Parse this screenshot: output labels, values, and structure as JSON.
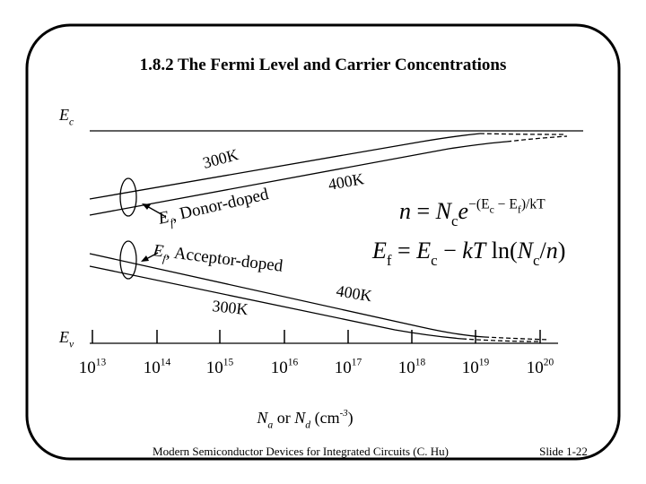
{
  "title": "1.8.2  The Fermi Level and Carrier Concentrations",
  "diagram": {
    "ec_label": [
      {
        "text": "E",
        "kind": "i"
      },
      {
        "text": "c",
        "kind": "sub"
      }
    ],
    "ev_label": [
      {
        "text": "E",
        "kind": "i"
      },
      {
        "text": "v",
        "kind": "sub"
      }
    ],
    "donor_300k": [
      {
        "text": "300K",
        "kind": "n"
      }
    ],
    "donor_400k": [
      {
        "text": "400K",
        "kind": "n"
      }
    ],
    "donor_label": [
      {
        "text": "E",
        "kind": "i"
      },
      {
        "text": "f",
        "kind": "sub"
      },
      {
        "text": ", Donor-doped",
        "kind": "n"
      }
    ],
    "acceptor_label": [
      {
        "text": "E",
        "kind": "i"
      },
      {
        "text": "f",
        "kind": "sub"
      },
      {
        "text": ", Acceptor-doped",
        "kind": "n"
      }
    ],
    "acceptor_400k": [
      {
        "text": "400K",
        "kind": "n"
      }
    ],
    "acceptor_300k": [
      {
        "text": "300K",
        "kind": "n"
      }
    ],
    "x_ticks": [
      [
        {
          "text": "10",
          "kind": "n"
        },
        {
          "text": "13",
          "kind": "sup"
        }
      ],
      [
        {
          "text": "10",
          "kind": "n"
        },
        {
          "text": "14",
          "kind": "sup"
        }
      ],
      [
        {
          "text": "10",
          "kind": "n"
        },
        {
          "text": "15",
          "kind": "sup"
        }
      ],
      [
        {
          "text": "10",
          "kind": "n"
        },
        {
          "text": "16",
          "kind": "sup"
        }
      ],
      [
        {
          "text": "10",
          "kind": "n"
        },
        {
          "text": "17",
          "kind": "sup"
        }
      ],
      [
        {
          "text": "10",
          "kind": "n"
        },
        {
          "text": "18",
          "kind": "sup"
        }
      ],
      [
        {
          "text": "10",
          "kind": "n"
        },
        {
          "text": "19",
          "kind": "sup"
        }
      ],
      [
        {
          "text": "10",
          "kind": "n"
        },
        {
          "text": "20",
          "kind": "sup"
        }
      ]
    ],
    "x_axis_label": [
      {
        "text": "N",
        "kind": "i"
      },
      {
        "text": "a",
        "kind": "sub"
      },
      {
        "text": " or ",
        "kind": "n"
      },
      {
        "text": "N",
        "kind": "i"
      },
      {
        "text": "d",
        "kind": "sub"
      },
      {
        "text": " (cm",
        "kind": "n"
      },
      {
        "text": "-3",
        "kind": "sup"
      },
      {
        "text": ")",
        "kind": "n"
      }
    ],
    "equation_n": [
      {
        "text": "n",
        "kind": "i"
      },
      {
        "text": " = ",
        "kind": "n"
      },
      {
        "text": "N",
        "kind": "i"
      },
      {
        "text": "c",
        "kind": "sub"
      },
      {
        "text": "e",
        "kind": "i"
      },
      {
        "text": "−(",
        "kind": "sup"
      },
      {
        "text": "E",
        "kind": "sup"
      },
      {
        "text": "c",
        "kind": "supsub"
      },
      {
        "text": " − ",
        "kind": "sup"
      },
      {
        "text": "E",
        "kind": "sup"
      },
      {
        "text": "f",
        "kind": "supsub"
      },
      {
        "text": ")/",
        "kind": "sup"
      },
      {
        "text": "kT",
        "kind": "sup"
      }
    ],
    "equation_ef": [
      {
        "text": "E",
        "kind": "i"
      },
      {
        "text": "f",
        "kind": "sub"
      },
      {
        "text": " = ",
        "kind": "n"
      },
      {
        "text": "E",
        "kind": "i"
      },
      {
        "text": "c",
        "kind": "sub"
      },
      {
        "text": " − ",
        "kind": "n"
      },
      {
        "text": "kT",
        "kind": "i"
      },
      {
        "text": " ln(",
        "kind": "n"
      },
      {
        "text": "N",
        "kind": "i"
      },
      {
        "text": "c",
        "kind": "sub"
      },
      {
        "text": "/",
        "kind": "n"
      },
      {
        "text": "n",
        "kind": "i"
      },
      {
        "text": ")",
        "kind": "n"
      }
    ]
  },
  "footer": {
    "credit": "Modern Semiconductor Devices for Integrated Circuits (C. Hu)",
    "slide": "Slide 1-22"
  }
}
